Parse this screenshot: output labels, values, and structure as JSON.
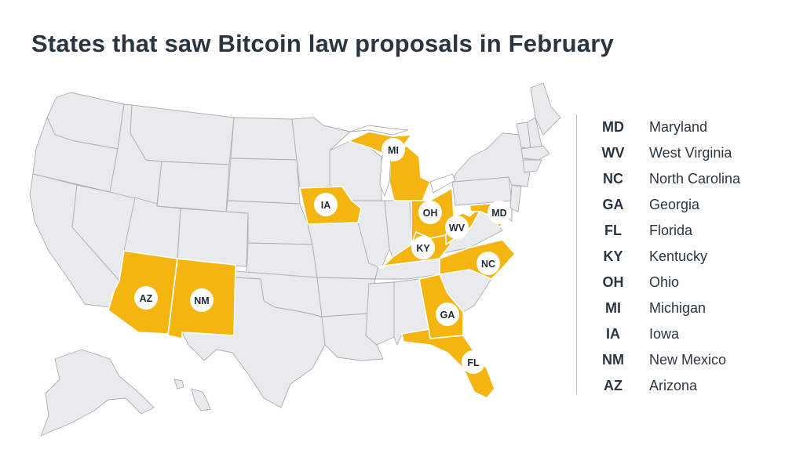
{
  "title": "States that saw Bitcoin law proposals in February",
  "colors": {
    "highlight": "#f5b511",
    "base": "#e9eaeb",
    "border": "#a9aeb3",
    "text": "#2b3541"
  },
  "highlighted_states": [
    "MD",
    "WV",
    "NC",
    "GA",
    "FL",
    "KY",
    "OH",
    "MI",
    "IA",
    "NM",
    "AZ"
  ],
  "map_labels": {
    "MI": "MI",
    "IA": "IA",
    "OH": "OH",
    "WV": "WV",
    "MD": "MD",
    "KY": "KY",
    "NC": "NC",
    "AZ": "AZ",
    "NM": "NM",
    "GA": "GA",
    "FL": "FL"
  },
  "legend": [
    {
      "abbr": "MD",
      "name": "Maryland"
    },
    {
      "abbr": "WV",
      "name": "West Virginia"
    },
    {
      "abbr": "NC",
      "name": "North Carolina"
    },
    {
      "abbr": "GA",
      "name": "Georgia"
    },
    {
      "abbr": "FL",
      "name": "Florida"
    },
    {
      "abbr": "KY",
      "name": "Kentucky"
    },
    {
      "abbr": "OH",
      "name": "Ohio"
    },
    {
      "abbr": "MI",
      "name": "Michigan"
    },
    {
      "abbr": "IA",
      "name": "Iowa"
    },
    {
      "abbr": "NM",
      "name": "New Mexico"
    },
    {
      "abbr": "AZ",
      "name": "Arizona"
    }
  ]
}
